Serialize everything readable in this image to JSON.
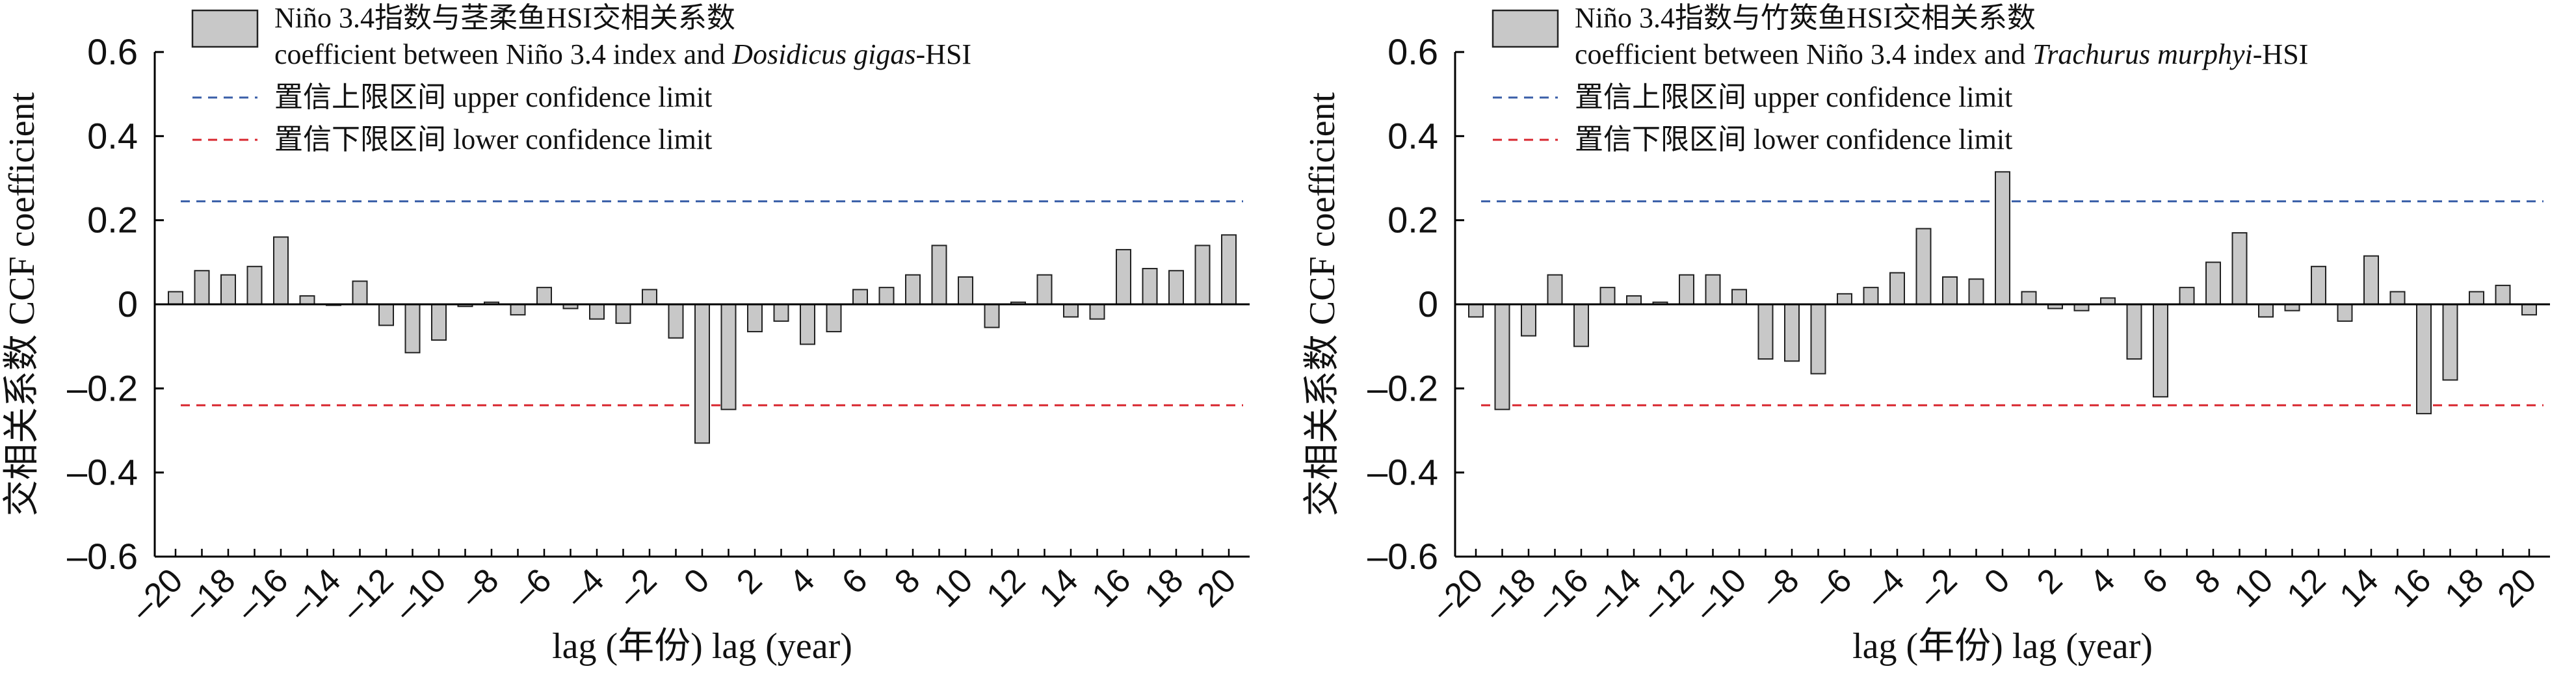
{
  "chart_data": [
    {
      "type": "bar",
      "title": "",
      "xlabel": "lag (年份) lag (year)",
      "ylabel": "交相关系数 CCF coefficient",
      "ylim": [
        -0.6,
        0.6
      ],
      "yticks": [
        "0.6",
        "0.4",
        "0.2",
        "0",
        "-0.2",
        "-0.4",
        "-0.6"
      ],
      "xticks": [
        "-20",
        "-18",
        "-16",
        "-14",
        "-12",
        "-10",
        "-8",
        "-6",
        "-4",
        "-2",
        "0",
        "2",
        "4",
        "6",
        "8",
        "10",
        "12",
        "14",
        "16",
        "18",
        "20"
      ],
      "x": [
        -20,
        -19,
        -18,
        -17,
        -16,
        -15,
        -14,
        -13,
        -12,
        -11,
        -10,
        -9,
        -8,
        -7,
        -6,
        -5,
        -4,
        -3,
        -2,
        -1,
        0,
        1,
        2,
        3,
        4,
        5,
        6,
        7,
        8,
        9,
        10,
        11,
        12,
        13,
        14,
        15,
        16,
        17,
        18,
        19,
        20
      ],
      "values": [
        0.03,
        0.08,
        0.07,
        0.09,
        0.16,
        0.02,
        0.0,
        0.055,
        -0.05,
        -0.115,
        -0.085,
        -0.005,
        0.005,
        -0.025,
        0.04,
        -0.01,
        -0.035,
        -0.045,
        0.035,
        -0.08,
        -0.33,
        -0.25,
        -0.065,
        -0.04,
        -0.095,
        -0.065,
        0.035,
        0.04,
        0.07,
        0.14,
        0.065,
        -0.055,
        0.005,
        0.07,
        -0.03,
        -0.035,
        0.13,
        0.085,
        0.08,
        0.14,
        0.165
      ],
      "upper_limit": 0.245,
      "lower_limit": -0.24,
      "legend_position": "top-left",
      "legend": {
        "bar_line1": "Niño 3.4指数与茎柔鱼HSI交相关系数",
        "bar_line2_prefix": "coefficient between Niño 3.4 index and ",
        "bar_line2_italic": "Dosidicus gigas",
        "bar_line2_suffix": "-HSI",
        "upper": "置信上限区间 upper confidence limit",
        "lower": "置信下限区间 lower confidence limit"
      },
      "colors": {
        "bar": "#c8c8c8",
        "bar_edge": "#222222",
        "upper": "#3a5fa8",
        "lower": "#d8262e",
        "axis": "#000000"
      }
    },
    {
      "type": "bar",
      "title": "",
      "xlabel": "lag (年份) lag (year)",
      "ylabel": "交相关系数 CCF coefficient",
      "ylim": [
        -0.6,
        0.6
      ],
      "yticks": [
        "0.6",
        "0.4",
        "0.2",
        "0",
        "-0.2",
        "-0.4",
        "-0.6"
      ],
      "xticks": [
        "-20",
        "-18",
        "-16",
        "-14",
        "-12",
        "-10",
        "-8",
        "-6",
        "-4",
        "-2",
        "0",
        "2",
        "4",
        "6",
        "8",
        "10",
        "12",
        "14",
        "16",
        "18",
        "20"
      ],
      "x": [
        -20,
        -19,
        -18,
        -17,
        -16,
        -15,
        -14,
        -13,
        -12,
        -11,
        -10,
        -9,
        -8,
        -7,
        -6,
        -5,
        -4,
        -3,
        -2,
        -1,
        0,
        1,
        2,
        3,
        4,
        5,
        6,
        7,
        8,
        9,
        10,
        11,
        12,
        13,
        14,
        15,
        16,
        17,
        18,
        19,
        20
      ],
      "values": [
        -0.03,
        -0.25,
        -0.075,
        0.07,
        -0.1,
        0.04,
        0.02,
        0.005,
        0.07,
        0.07,
        0.035,
        -0.13,
        -0.135,
        -0.165,
        0.025,
        0.04,
        0.075,
        0.18,
        0.065,
        0.06,
        0.315,
        0.03,
        -0.01,
        -0.015,
        0.015,
        -0.13,
        -0.22,
        0.04,
        0.1,
        0.17,
        -0.03,
        -0.015,
        0.09,
        -0.04,
        0.115,
        0.03,
        -0.26,
        -0.18,
        0.03,
        0.045,
        -0.025
      ],
      "upper_limit": 0.245,
      "lower_limit": -0.24,
      "legend_position": "top-left",
      "legend": {
        "bar_line1": "Niño 3.4指数与竹筴鱼HSI交相关系数",
        "bar_line2_prefix": "coefficient between Niño 3.4 index and ",
        "bar_line2_italic": "Trachurus murphyi",
        "bar_line2_suffix": "-HSI",
        "upper": "置信上限区间 upper confidence limit",
        "lower": "置信下限区间 lower confidence limit"
      },
      "colors": {
        "bar": "#c8c8c8",
        "bar_edge": "#222222",
        "upper": "#3a5fa8",
        "lower": "#d8262e",
        "axis": "#000000"
      }
    }
  ]
}
